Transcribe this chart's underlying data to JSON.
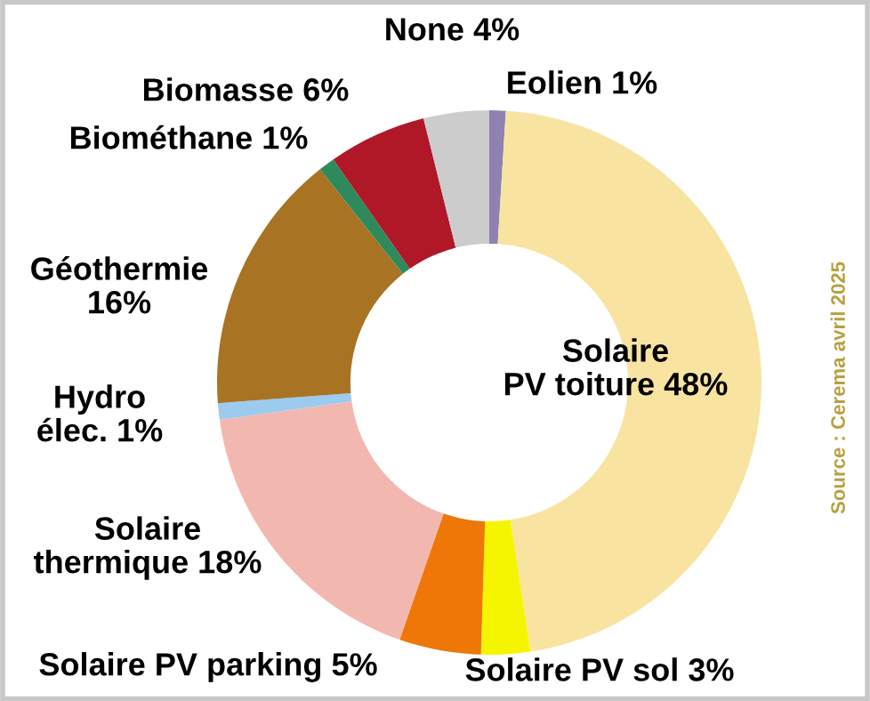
{
  "chart_data": {
    "type": "donut",
    "categories": [
      "Eolien",
      "Solaire\nPV toiture",
      "Solaire PV sol",
      "Solaire PV parking",
      "Solaire\nthermique",
      "Hydro\nélec.",
      "Géothermie",
      "Biométhane",
      "Biomasse",
      "None"
    ],
    "values": [
      1,
      48,
      3,
      5,
      18,
      1,
      16,
      1,
      6,
      4
    ],
    "value_labels": [
      "1%",
      "48%",
      "3%",
      "5%",
      "18%",
      "1%",
      "16%",
      "1%",
      "6%",
      "4%"
    ],
    "colors": [
      "#8e82b0",
      "#f8e4a0",
      "#f5f500",
      "#ee7708",
      "#f2b8b0",
      "#9ccbef",
      "#a87424",
      "#2e8a5c",
      "#b01828",
      "#cccccc"
    ],
    "annotations": [
      "Source : Cerema avril 2025"
    ]
  }
}
